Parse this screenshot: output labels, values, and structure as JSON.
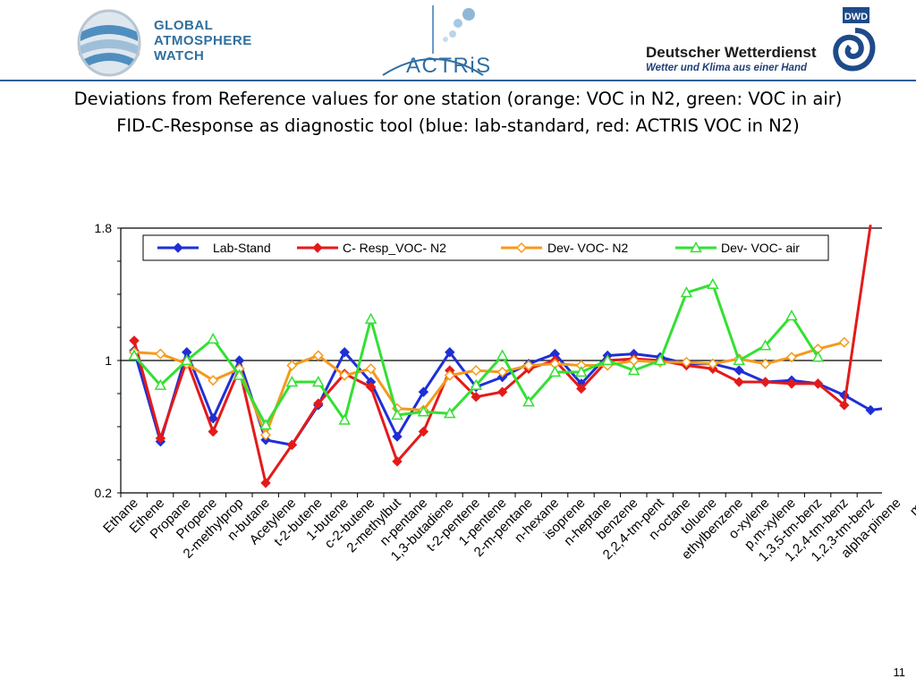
{
  "header": {
    "gaw_logo": [
      "GLOBAL",
      "ATMOSPHERE",
      "WATCH"
    ],
    "actris_logo": "ACTRiS",
    "dwd_badge": "DWD",
    "dwd_name": "Deutscher Wetterdienst",
    "dwd_tagline": "Wetter und Klima aus einer Hand"
  },
  "colors": {
    "blue": "#1f2fd6",
    "red": "#e41a1a",
    "orange": "#f59a1b",
    "green": "#33e033",
    "brand_blue": "#2f5f96"
  },
  "page_number": "11",
  "chart_data": {
    "type": "line",
    "title_lines": [
      "Deviations from Reference values for one station (orange: VOC in N2, green: VOC in air)",
      "FID-C-Response as diagnostic tool (blue: lab-standard, red: ACTRIS VOC in N2)"
    ],
    "xlabel": "",
    "ylabel": "",
    "ylim": [
      0.2,
      1.8
    ],
    "yticks": [
      "1.8",
      "1",
      "0.2"
    ],
    "grid": false,
    "reference_line": 1.0,
    "legend_position": "top",
    "categories": [
      "Ethane",
      "Ethene",
      "Propane",
      "Propene",
      "2-methylprop",
      "n-butane",
      "Acetylene",
      "t-2-butene",
      "1-butene",
      "c-2-butene",
      "2-methylbut",
      "n-pentane",
      "1,3-butadiene",
      "t-2-pentene",
      "1-pentene",
      "2-m-pentane",
      "n-hexane",
      "isoprene",
      "n-heptane",
      "benzene",
      "2,2,4-tm-pent",
      "n-octane",
      "toluene",
      "ethylbenzene",
      "o-xylene",
      "p,m-xylene",
      "1,3,5-tm-benz",
      "1,2,4-tm-benz",
      "1,2,3-tm-benz",
      "alpha-pinene",
      "my"
    ],
    "series": [
      {
        "name": "Lab-Stand",
        "color": "#1f2fd6",
        "marker": "diamond-filled",
        "values": [
          1.06,
          0.51,
          1.05,
          0.65,
          1.0,
          0.52,
          0.49,
          0.73,
          1.05,
          0.87,
          0.54,
          0.81,
          1.05,
          0.84,
          0.9,
          0.98,
          1.04,
          0.86,
          1.03,
          1.04,
          1.02,
          0.98,
          0.98,
          0.94,
          0.87,
          0.88,
          0.86,
          0.79,
          0.7,
          0.72,
          null
        ]
      },
      {
        "name": "C- Resp_VOC- N2",
        "color": "#e41a1a",
        "marker": "diamond-filled",
        "values": [
          1.12,
          0.53,
          1.0,
          0.57,
          0.95,
          0.26,
          0.49,
          0.74,
          0.92,
          0.84,
          0.39,
          0.57,
          0.94,
          0.78,
          0.81,
          0.95,
          1.0,
          0.83,
          1.0,
          1.01,
          1.0,
          0.97,
          0.95,
          0.87,
          0.87,
          0.86,
          0.86,
          0.73,
          1.82,
          null,
          null
        ]
      },
      {
        "name": "Dev- VOC- N2",
        "color": "#f59a1b",
        "marker": "diamond-open",
        "values": [
          1.05,
          1.04,
          0.98,
          0.88,
          0.95,
          0.55,
          0.97,
          1.03,
          0.91,
          0.95,
          0.71,
          0.7,
          0.91,
          0.94,
          0.93,
          0.97,
          0.98,
          0.97,
          0.97,
          1.0,
          0.99,
          0.99,
          0.98,
          1.01,
          0.98,
          1.02,
          1.07,
          1.11,
          null,
          null,
          null
        ]
      },
      {
        "name": "Dev- VOC- air",
        "color": "#33e033",
        "marker": "triangle-open",
        "values": [
          1.03,
          0.85,
          1.0,
          1.13,
          0.91,
          0.61,
          0.87,
          0.87,
          0.64,
          1.25,
          0.67,
          0.69,
          0.68,
          0.85,
          1.03,
          0.75,
          0.93,
          0.93,
          1.0,
          0.94,
          1.0,
          1.41,
          1.46,
          1.0,
          1.09,
          1.27,
          1.02,
          null,
          null,
          null,
          null
        ]
      }
    ]
  }
}
